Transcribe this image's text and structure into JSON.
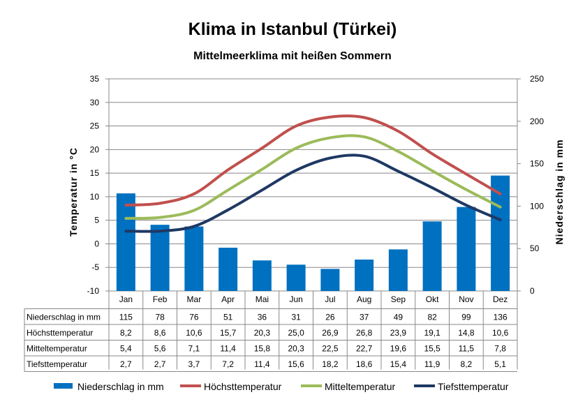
{
  "chart_data": {
    "type": "bar+line",
    "title": "Klima in Istanbul (Türkei)",
    "subtitle": "Mittelmeerklima mit heißen Sommern",
    "categories": [
      "Jan",
      "Feb",
      "Mar",
      "Apr",
      "Mai",
      "Jun",
      "Jul",
      "Aug",
      "Sep",
      "Okt",
      "Nov",
      "Dez"
    ],
    "ylabel_left": "Temperatur in °C",
    "ylabel_right": "Niederschlag in mm",
    "ylim_left": [
      -10,
      35
    ],
    "yticks_left": [
      -10,
      -5,
      0,
      5,
      10,
      15,
      20,
      25,
      30,
      35
    ],
    "ylim_right": [
      0,
      250
    ],
    "yticks_right": [
      0,
      50,
      100,
      150,
      200,
      250
    ],
    "grid": true,
    "legend_position": "bottom",
    "bar_series": {
      "name": "Niederschlag in mm",
      "axis": "right",
      "color": "#0070C0",
      "values": [
        115,
        78,
        76,
        51,
        36,
        31,
        26,
        37,
        49,
        82,
        99,
        136
      ],
      "labels": [
        "115",
        "78",
        "76",
        "51",
        "36",
        "31",
        "26",
        "37",
        "49",
        "82",
        "99",
        "136"
      ]
    },
    "line_series": [
      {
        "name": "Höchsttemperatur",
        "axis": "left",
        "color": "#C0504D",
        "values": [
          8.2,
          8.6,
          10.6,
          15.7,
          20.3,
          25.0,
          26.9,
          26.8,
          23.9,
          19.1,
          14.8,
          10.6
        ],
        "labels": [
          "8,2",
          "8,6",
          "10,6",
          "15,7",
          "20,3",
          "25,0",
          "26,9",
          "26,8",
          "23,9",
          "19,1",
          "14,8",
          "10,6"
        ]
      },
      {
        "name": "Mitteltemperatur",
        "axis": "left",
        "color": "#9BBB59",
        "values": [
          5.4,
          5.6,
          7.1,
          11.4,
          15.8,
          20.3,
          22.5,
          22.7,
          19.6,
          15.5,
          11.5,
          7.8
        ],
        "labels": [
          "5,4",
          "5,6",
          "7,1",
          "11,4",
          "15,8",
          "20,3",
          "22,5",
          "22,7",
          "19,6",
          "15,5",
          "11,5",
          "7,8"
        ]
      },
      {
        "name": "Tiefsttemperatur",
        "axis": "left",
        "color": "#1F3864",
        "values": [
          2.7,
          2.7,
          3.7,
          7.2,
          11.4,
          15.6,
          18.2,
          18.6,
          15.4,
          11.9,
          8.2,
          5.1
        ],
        "labels": [
          "2,7",
          "2,7",
          "3,7",
          "7,2",
          "11,4",
          "15,6",
          "18,2",
          "18,6",
          "15,4",
          "11,9",
          "8,2",
          "5,1"
        ]
      }
    ]
  }
}
